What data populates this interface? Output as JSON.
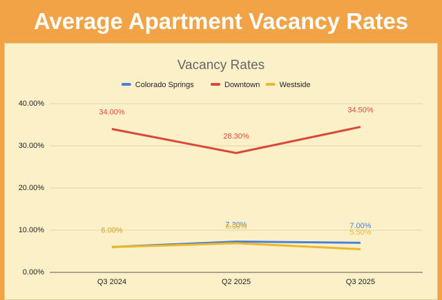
{
  "header": {
    "title": "Average Apartment Vacancy Rates"
  },
  "chart_data": {
    "type": "line",
    "title": "Vacancy Rates",
    "categories": [
      "Q3 2024",
      "Q2 2025",
      "Q3 2025"
    ],
    "series": [
      {
        "name": "Colorado Springs",
        "color": "#4a7fdc",
        "values": [
          6.0,
          7.3,
          7.0
        ],
        "value_labels": [
          "6.00%",
          "7.30%",
          "7.00%"
        ]
      },
      {
        "name": "Downtown",
        "color": "#d9473a",
        "values": [
          34.0,
          28.3,
          34.5
        ],
        "value_labels": [
          "34.00%",
          "28.30%",
          "34.50%"
        ]
      },
      {
        "name": "Westside",
        "color": "#edb72c",
        "values": [
          6.0,
          6.9,
          5.5
        ],
        "value_labels": [
          "6.00%",
          "6.90%",
          "5.50%"
        ]
      }
    ],
    "ylim": [
      0,
      40
    ],
    "yticks": [
      {
        "value": 0,
        "label": "0.00%"
      },
      {
        "value": 10,
        "label": "10.00%"
      },
      {
        "value": 20,
        "label": "20.00%"
      },
      {
        "value": 30,
        "label": "30.00%"
      },
      {
        "value": 40,
        "label": "40.00%"
      }
    ],
    "grid": true,
    "legend": "top"
  }
}
